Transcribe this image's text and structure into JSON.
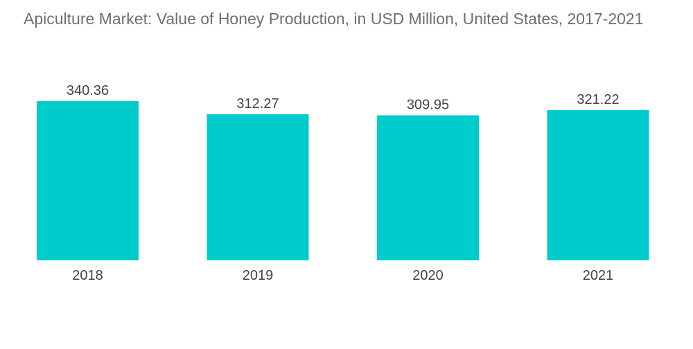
{
  "chart_data": {
    "type": "bar",
    "title": "Apiculture Market: Value of Honey Production, in USD Million, United States, 2017-2021",
    "xlabel": "",
    "ylabel": "",
    "categories": [
      "2018",
      "2019",
      "2020",
      "2021"
    ],
    "values": [
      340.36,
      312.27,
      309.95,
      321.22
    ],
    "value_labels": [
      "340.36",
      "312.27",
      "309.95",
      "321.22"
    ],
    "ylim": [
      0,
      340.36
    ],
    "grid": false,
    "legend": "none",
    "bar_color": "#00cccc",
    "text_color": "#444444",
    "title_color": "#6f6f6f"
  }
}
